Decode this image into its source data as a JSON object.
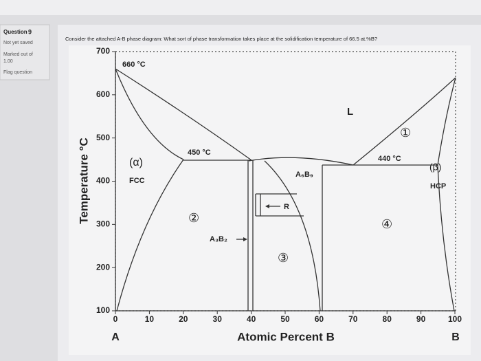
{
  "sidebar": {
    "question_label": "Question",
    "question_number": "9",
    "status": "Not yet saved",
    "marked_out_of": "Marked out of",
    "marks": "1.00",
    "flag": "Flag question"
  },
  "question": {
    "text": "Consider the attached A-B phase diagram: What sort of phase transformation takes place at the solidification temperature of 66.5 at.%B?"
  },
  "diagram": {
    "y_axis_title": "Temperature °C",
    "x_axis_title": "Atomic Percent B",
    "end_labels": [
      "A",
      "B"
    ],
    "x_ticks": [
      "0",
      "10",
      "20",
      "30",
      "40",
      "50",
      "60",
      "70",
      "80",
      "90",
      "100"
    ],
    "y_ticks": [
      "100",
      "200",
      "300",
      "400",
      "500",
      "600",
      "700"
    ],
    "annotations": [
      "660 °C",
      "450 °C",
      "440 °C",
      "L",
      "(α)",
      "FCC",
      "(β)",
      "HCP",
      "A₆B₉",
      "R",
      "A₃B₂",
      "①",
      "②",
      "③",
      "④"
    ]
  }
}
